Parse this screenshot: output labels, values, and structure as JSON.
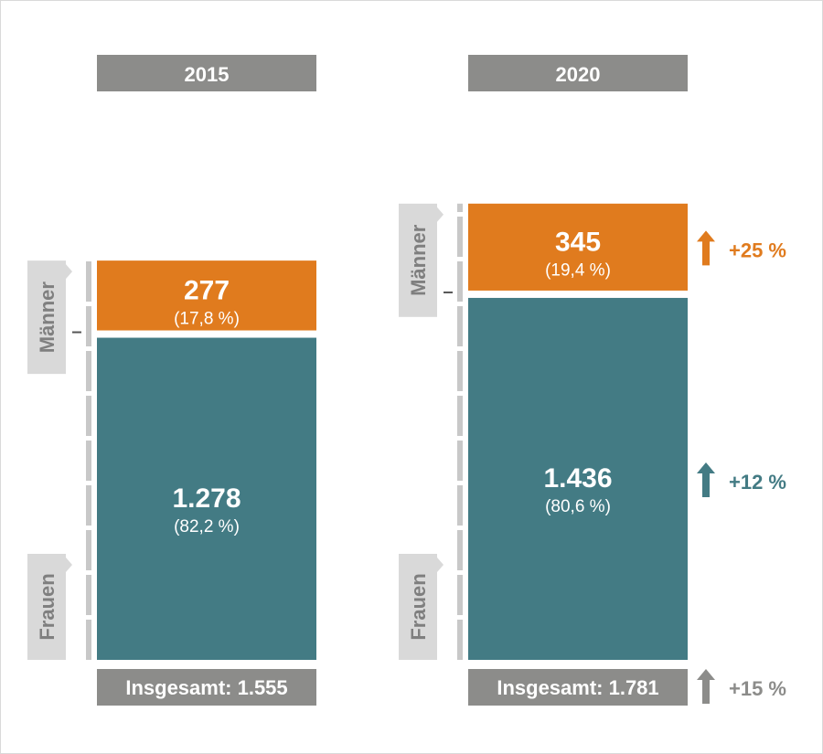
{
  "chart_data": {
    "type": "bar",
    "stacked": true,
    "categories": [
      "2015",
      "2020"
    ],
    "series": [
      {
        "name": "Männer",
        "values": [
          277,
          345
        ],
        "shares": [
          "(17,8 %)",
          "(19,4 %)"
        ],
        "labels": [
          "277",
          "345"
        ]
      },
      {
        "name": "Frauen",
        "values": [
          1278,
          1436
        ],
        "shares": [
          "(82,2 %)",
          "(80,6 %)"
        ],
        "labels": [
          "1.278",
          "1.436"
        ]
      }
    ],
    "totals": [
      "Insgesamt: 1.555",
      "Insgesamt: 1.781"
    ],
    "changes": [
      {
        "series": "Männer",
        "label": "+25 %"
      },
      {
        "series": "Frauen",
        "label": "+12 %"
      },
      {
        "series": "Insgesamt",
        "label": "+15 %"
      }
    ],
    "colors": {
      "maenner": "#e07b1e",
      "frauen": "#437b84",
      "header": "#8c8c8a",
      "side_label": "#d9d9d9",
      "tick": "#c8c8c8",
      "side_text": "#7f7f7f"
    }
  }
}
